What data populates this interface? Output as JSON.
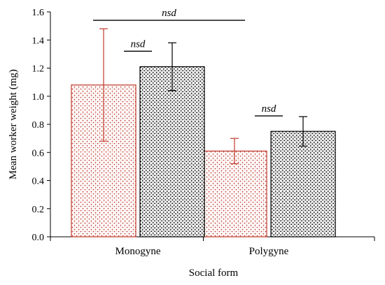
{
  "chart_data": {
    "type": "bar",
    "title": "",
    "xlabel": "Social form",
    "ylabel": "Mean worker weight (mg)",
    "ylim": [
      0,
      1.6
    ],
    "yticks": [
      "0.0",
      "0.2",
      "0.4",
      "0.6",
      "0.8",
      "1.0",
      "1.2",
      "1.4",
      "1.6"
    ],
    "categories": [
      "Monogyne",
      "Polygyne"
    ],
    "series": [
      {
        "color": "#c0392b",
        "pattern": "red-stipple",
        "values": [
          1.08,
          0.61
        ],
        "error": [
          0.4,
          0.09
        ]
      },
      {
        "color": "#000000",
        "pattern": "black-stipple",
        "values": [
          1.21,
          0.75
        ],
        "error": [
          0.17,
          0.105
        ]
      }
    ],
    "annotations": [
      {
        "text": "nsd",
        "from": [
          "Monogyne",
          0
        ],
        "to": [
          "Polygyne",
          0
        ],
        "y": 1.54
      },
      {
        "text": "nsd",
        "from": [
          "Monogyne",
          0
        ],
        "to": [
          "Monogyne",
          1
        ],
        "y": 1.32
      },
      {
        "text": "nsd",
        "from": [
          "Polygyne",
          0
        ],
        "to": [
          "Polygyne",
          1
        ],
        "y": 0.86
      }
    ],
    "grid": false,
    "legend": "none"
  }
}
